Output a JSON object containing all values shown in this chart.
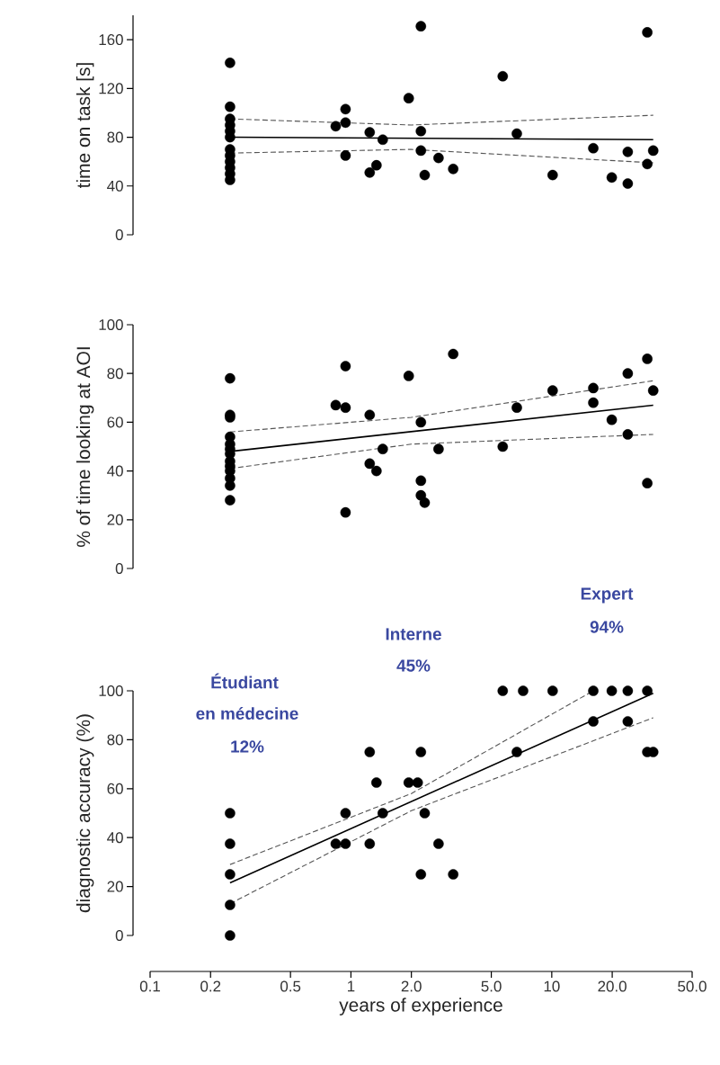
{
  "chart_data": [
    {
      "type": "scatter",
      "ylabel": "time on task [s]",
      "log": "x",
      "xlim": [
        0.1,
        50
      ],
      "ylim": [
        0,
        180
      ],
      "yticks": [
        0,
        40,
        80,
        120,
        160
      ],
      "tick_labels": "y",
      "series": [
        {
          "marker": "circle",
          "color": "#000000",
          "x": [
            0.25,
            0.25,
            0.25,
            0.25,
            0.25,
            0.25,
            0.25,
            0.25,
            0.25,
            0.25,
            0.25,
            0.25,
            0.84,
            0.94,
            0.94,
            0.94,
            1.24,
            1.24,
            1.34,
            1.44,
            1.94,
            2.23,
            2.23,
            2.23,
            2.33,
            2.73,
            3.23,
            5.7,
            6.7,
            10.1,
            16.1,
            19.9,
            23.9,
            23.9,
            29.9,
            29.9,
            32
          ],
          "values": [
            141,
            105,
            95,
            90,
            85,
            80,
            70,
            65,
            60,
            55,
            50,
            45,
            89,
            103,
            92,
            65,
            84,
            51,
            57,
            78,
            112,
            171,
            85,
            69,
            49,
            63,
            54,
            130,
            83,
            49,
            71,
            47,
            68,
            42,
            166,
            58,
            69
          ]
        },
        {
          "type": "line",
          "line_style": "solid",
          "color": "#000000",
          "x": [
            0.25,
            32
          ],
          "values": [
            80,
            78
          ]
        },
        {
          "type": "line",
          "line_style": "dashed",
          "color": "#555555",
          "x": [
            0.25,
            2,
            32
          ],
          "values": [
            95,
            90,
            98
          ]
        },
        {
          "type": "line",
          "line_style": "dashed",
          "color": "#555555",
          "x": [
            0.25,
            2,
            32
          ],
          "values": [
            67,
            70,
            59
          ]
        }
      ]
    },
    {
      "type": "scatter",
      "ylabel": "% of time looking at AOI",
      "log": "x",
      "xlim": [
        0.1,
        50
      ],
      "ylim": [
        0,
        100
      ],
      "yticks": [
        0,
        20,
        40,
        60,
        80,
        100
      ],
      "tick_labels": "y",
      "series": [
        {
          "marker": "circle",
          "color": "#000000",
          "x": [
            0.25,
            0.25,
            0.25,
            0.25,
            0.25,
            0.25,
            0.25,
            0.25,
            0.25,
            0.25,
            0.25,
            0.25,
            0.25,
            0.84,
            0.94,
            0.94,
            0.94,
            1.24,
            1.24,
            1.34,
            1.44,
            1.94,
            2.23,
            2.23,
            2.23,
            2.33,
            2.73,
            3.23,
            5.7,
            6.7,
            10.1,
            16.1,
            16.1,
            19.9,
            23.9,
            23.9,
            29.9,
            29.9,
            32
          ],
          "values": [
            78,
            63,
            62,
            54,
            51,
            49,
            47,
            44,
            42,
            40,
            37,
            34,
            28,
            67,
            83,
            66,
            23,
            63,
            43,
            40,
            49,
            79,
            60,
            36,
            30,
            27,
            49,
            88,
            50,
            66,
            73,
            74,
            68,
            61,
            80,
            55,
            86,
            35,
            73
          ]
        },
        {
          "type": "line",
          "line_style": "solid",
          "color": "#000000",
          "x": [
            0.25,
            32
          ],
          "values": [
            48,
            67
          ]
        },
        {
          "type": "line",
          "line_style": "dashed",
          "color": "#555555",
          "x": [
            0.25,
            2,
            32
          ],
          "values": [
            56,
            62,
            77
          ]
        },
        {
          "type": "line",
          "line_style": "dashed",
          "color": "#555555",
          "x": [
            0.25,
            2,
            32
          ],
          "values": [
            41,
            51,
            55
          ]
        }
      ]
    },
    {
      "type": "scatter",
      "ylabel": "diagnostic accuracy (%)",
      "xlabel": "years of experience",
      "log": "x",
      "xlim": [
        0.1,
        50
      ],
      "ylim": [
        0,
        100
      ],
      "yticks": [
        0,
        20,
        40,
        60,
        80,
        100
      ],
      "xticks": [
        0.1,
        0.2,
        0.5,
        1,
        {
          "value": 2,
          "label": "2.0"
        },
        {
          "value": 5,
          "label": "5.0"
        },
        10,
        {
          "value": 20,
          "label": "20.0"
        },
        {
          "value": 50,
          "label": "50.0"
        }
      ],
      "annotations": [
        "Étudiant",
        "en médecine",
        "12%",
        "Interne",
        "45%",
        "Expert",
        "94%"
      ],
      "series": [
        {
          "marker": "circle",
          "color": "#000000",
          "x": [
            0.25,
            0.25,
            0.25,
            0.25,
            0.25,
            0.84,
            0.94,
            0.94,
            1.24,
            1.24,
            1.34,
            1.44,
            1.94,
            2.15,
            2.23,
            2.23,
            2.33,
            2.73,
            3.23,
            5.7,
            6.7,
            7.2,
            10.1,
            16.1,
            16.1,
            19.9,
            23.9,
            23.9,
            29.9,
            29.9,
            32
          ],
          "values": [
            50,
            37.5,
            25,
            12.5,
            0,
            37.5,
            50,
            37.5,
            75,
            37.5,
            62.5,
            50,
            62.5,
            62.5,
            75,
            25,
            50,
            37.5,
            25,
            100,
            75,
            100,
            100,
            100,
            87.5,
            100,
            100,
            87.5,
            100,
            75,
            75
          ]
        },
        {
          "type": "line",
          "line_style": "solid",
          "color": "#000000",
          "x": [
            0.25,
            32
          ],
          "values": [
            21.5,
            99
          ]
        },
        {
          "type": "line",
          "line_style": "dashed",
          "color": "#555555",
          "x": [
            0.25,
            2,
            16.1
          ],
          "values": [
            29,
            58,
            100
          ]
        },
        {
          "type": "line",
          "line_style": "dashed",
          "color": "#555555",
          "x": [
            0.25,
            2,
            32
          ],
          "values": [
            13,
            51,
            89
          ]
        }
      ]
    }
  ]
}
